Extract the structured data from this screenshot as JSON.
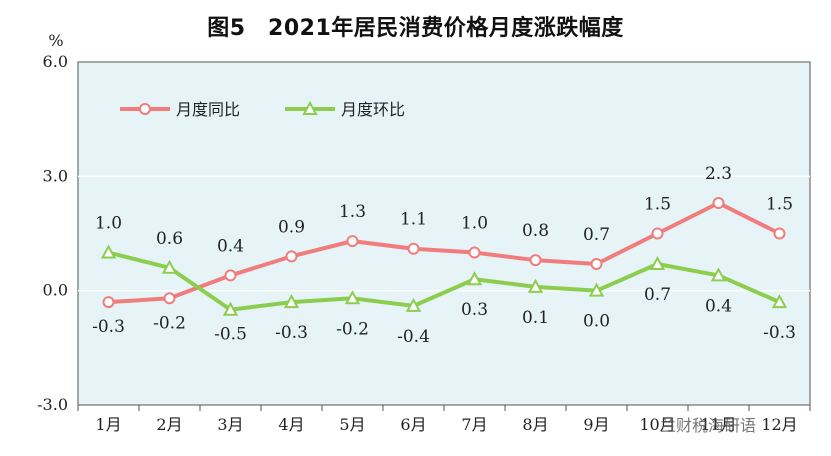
{
  "chart_data": {
    "type": "line",
    "title": "图5　2021年居民消费价格月度涨跌幅度",
    "unit": "%",
    "categories": [
      "1月",
      "2月",
      "3月",
      "4月",
      "5月",
      "6月",
      "7月",
      "8月",
      "9月",
      "10月",
      "11月",
      "12月"
    ],
    "ylim": [
      -3.0,
      6.0
    ],
    "yticks": [
      "6.0",
      "3.0",
      "0.0",
      "-3.0"
    ],
    "series": [
      {
        "name": "月度同比",
        "color": "#f07c7c",
        "marker": "circle",
        "values": [
          -0.3,
          -0.2,
          0.4,
          0.9,
          1.3,
          1.1,
          1.0,
          0.8,
          0.7,
          1.5,
          2.3,
          1.5
        ],
        "labels": [
          "-0.3",
          "-0.2",
          "0.4",
          "0.9",
          "1.3",
          "1.1",
          "1.0",
          "0.8",
          "0.7",
          "1.5",
          "2.3",
          "1.5"
        ]
      },
      {
        "name": "月度环比",
        "color": "#8ccd4e",
        "marker": "triangle",
        "values": [
          1.0,
          0.6,
          -0.5,
          -0.3,
          -0.2,
          -0.4,
          0.3,
          0.1,
          0.0,
          0.7,
          0.4,
          -0.3
        ],
        "labels": [
          "1.0",
          "0.6",
          "-0.5",
          "-0.3",
          "-0.2",
          "-0.4",
          "0.3",
          "0.1",
          "0.0",
          "0.7",
          "0.4",
          "-0.3"
        ]
      }
    ],
    "legend_position": "top-left",
    "plot_background": "#e6f4f8",
    "grid": true
  },
  "watermark": "兰财税海研语"
}
